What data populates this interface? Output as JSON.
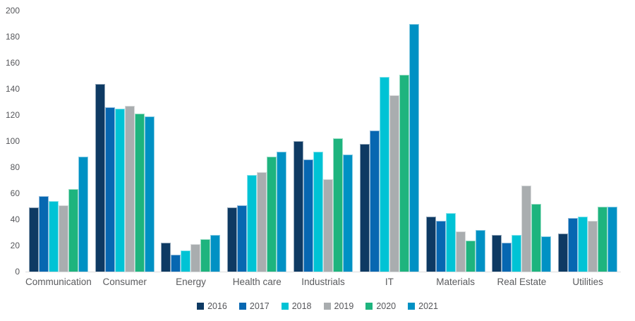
{
  "chart_data": {
    "type": "bar",
    "title": "",
    "xlabel": "",
    "ylabel": "",
    "ylim": [
      0,
      200
    ],
    "yticks": [
      0,
      20,
      40,
      60,
      80,
      100,
      120,
      140,
      160,
      180,
      200
    ],
    "grid": false,
    "legend_position": "bottom",
    "categories": [
      "Communication",
      "Consumer",
      "Energy",
      "Health care",
      "Industrials",
      "IT",
      "Materials",
      "Real Estate",
      "Utilities"
    ],
    "series": [
      {
        "name": "2016",
        "color": "#0e3a63",
        "values": [
          49,
          144,
          22,
          49,
          100,
          98,
          42,
          28,
          29
        ]
      },
      {
        "name": "2017",
        "color": "#0767b1",
        "values": [
          58,
          126,
          13,
          51,
          86,
          108,
          39,
          22,
          41
        ]
      },
      {
        "name": "2018",
        "color": "#00c3d5",
        "values": [
          54,
          125,
          16,
          74,
          92,
          149,
          45,
          28,
          42
        ]
      },
      {
        "name": "2019",
        "color": "#a9adaf",
        "values": [
          51,
          127,
          21,
          76,
          71,
          135,
          31,
          66,
          39
        ]
      },
      {
        "name": "2020",
        "color": "#1eb47e",
        "values": [
          63,
          121,
          25,
          88,
          102,
          151,
          24,
          52,
          50
        ]
      },
      {
        "name": "2021",
        "color": "#0091c4",
        "values": [
          88,
          119,
          28,
          92,
          90,
          190,
          32,
          27,
          50
        ]
      }
    ]
  }
}
